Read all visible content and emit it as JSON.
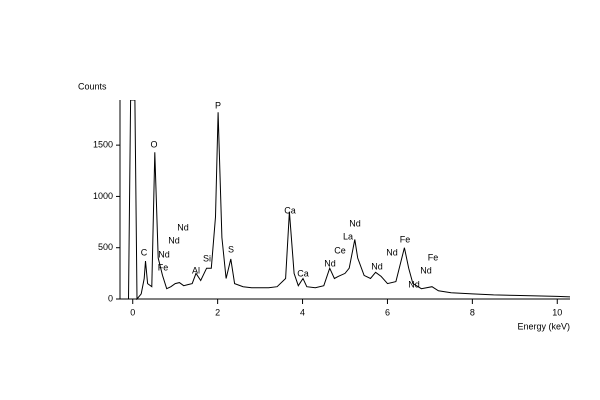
{
  "chart_data": {
    "type": "line",
    "y_label": "Counts",
    "x_label": "Energy (keV)",
    "x": [
      -0.1,
      -0.05,
      0.05,
      0.1,
      0.2,
      0.27,
      0.3,
      0.35,
      0.45,
      0.52,
      0.6,
      0.7,
      0.8,
      0.9,
      1.0,
      1.1,
      1.2,
      1.3,
      1.4,
      1.49,
      1.6,
      1.74,
      1.85,
      1.95,
      2.01,
      2.1,
      2.2,
      2.31,
      2.4,
      2.6,
      2.8,
      3.0,
      3.2,
      3.4,
      3.6,
      3.69,
      3.8,
      3.9,
      4.01,
      4.1,
      4.3,
      4.5,
      4.64,
      4.75,
      4.84,
      5.0,
      5.1,
      5.23,
      5.3,
      5.45,
      5.6,
      5.72,
      5.85,
      6.0,
      6.2,
      6.4,
      6.5,
      6.6,
      6.8,
      7.05,
      7.2,
      7.5,
      8.0,
      8.5,
      9.0,
      9.5,
      10.0,
      10.3
    ],
    "series": [
      {
        "color": "#000000",
        "values": [
          0,
          1940,
          1940,
          0,
          50,
          200,
          370,
          150,
          120,
          1430,
          400,
          230,
          100,
          120,
          150,
          160,
          130,
          140,
          150,
          250,
          180,
          300,
          300,
          800,
          1820,
          600,
          200,
          390,
          150,
          120,
          110,
          110,
          110,
          120,
          200,
          850,
          250,
          130,
          200,
          120,
          110,
          130,
          300,
          200,
          220,
          250,
          300,
          580,
          400,
          230,
          200,
          260,
          220,
          150,
          170,
          500,
          300,
          150,
          100,
          120,
          80,
          60,
          50,
          40,
          35,
          30,
          25,
          20
        ]
      }
    ],
    "xlim": [
      -0.3,
      10.3
    ],
    "ylim": [
      0,
      1940
    ],
    "xticks": [
      0,
      2,
      4,
      6,
      8,
      10
    ],
    "yticks": [
      0,
      500,
      1000,
      1500
    ],
    "annotations": [
      "C",
      "O",
      "Nd",
      "Fe",
      "Nd",
      "Nd",
      "Al",
      "Si",
      "P",
      "S",
      "Ca",
      "Ca",
      "Nd",
      "Ce",
      "La",
      "Nd",
      "Nd",
      "Nd",
      "Fe",
      "Nd",
      "Nd",
      "Fe"
    ]
  }
}
